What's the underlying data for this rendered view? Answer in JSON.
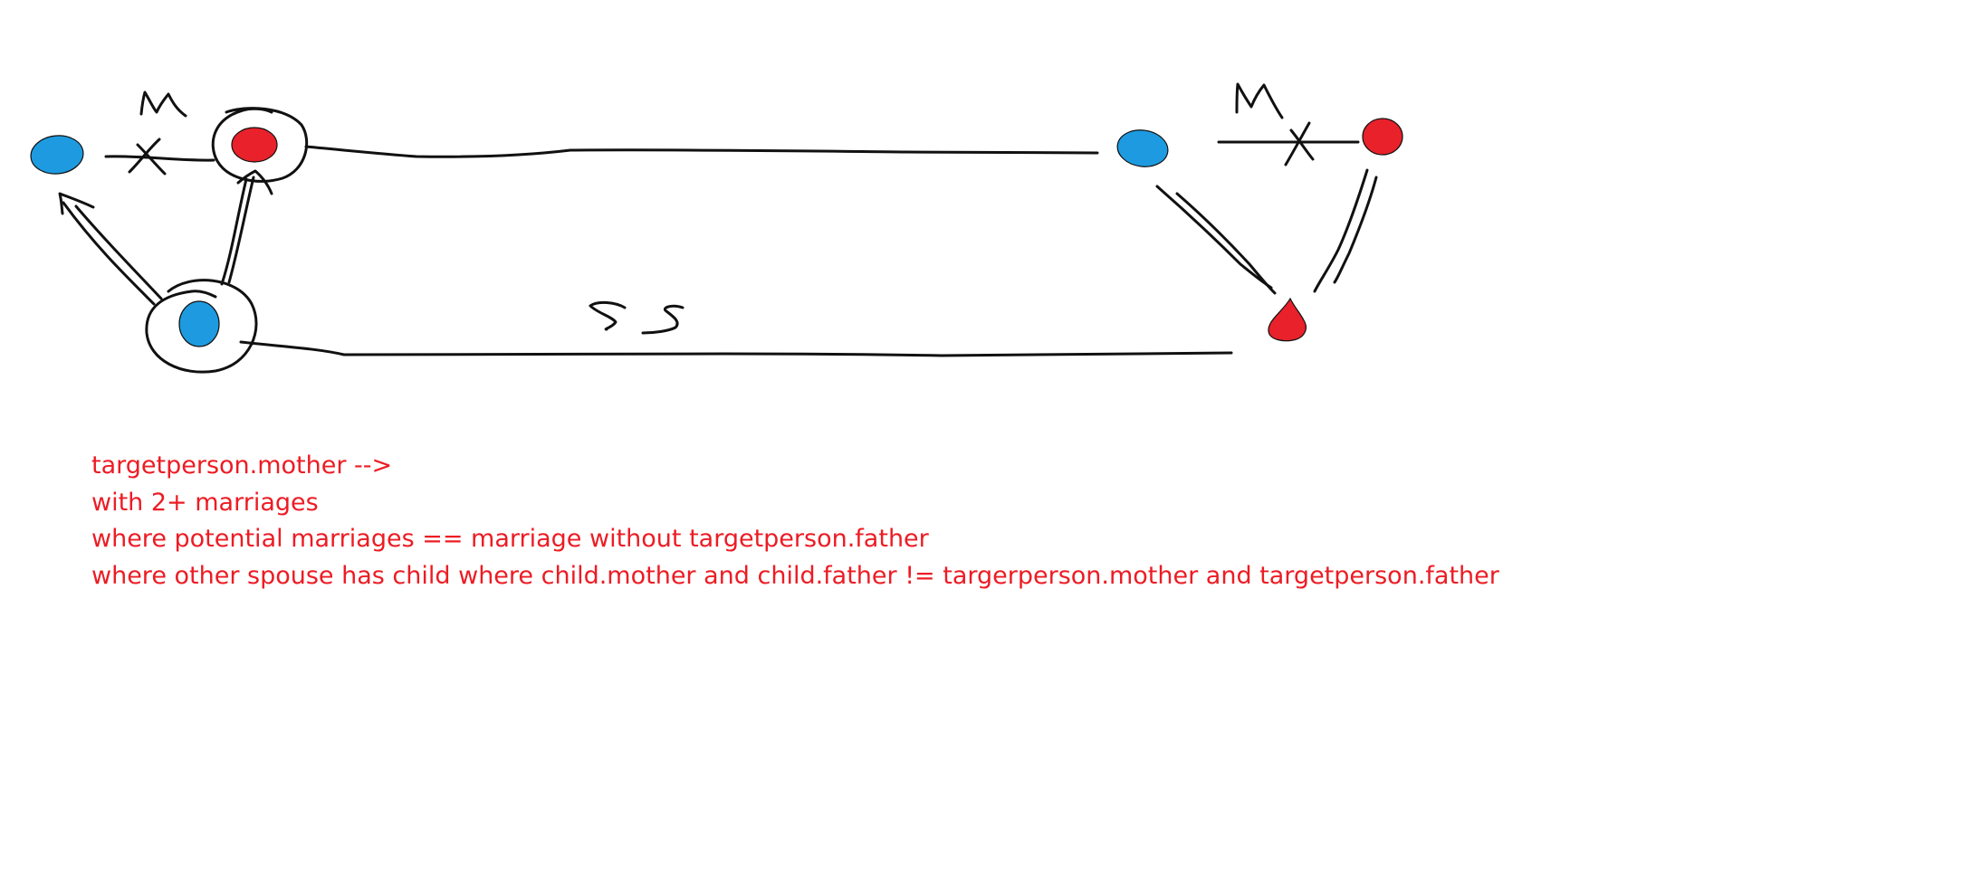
{
  "colors": {
    "background": "#ffffff",
    "stroke": "#111111",
    "blue_node": "#1e9be0",
    "red_node": "#e8212a",
    "note_text": "#ec1c24"
  },
  "labels": {
    "marriage_left": "M",
    "marriage_right": "M",
    "step_sibling": "SS"
  },
  "notes": [
    "targetperson.mother -->",
    "with 2+ marriages",
    "where potential marriages == marriage without targetperson.father",
    "where other spouse has child where child.mother and child.father != targerperson.mother and targetperson.father"
  ]
}
